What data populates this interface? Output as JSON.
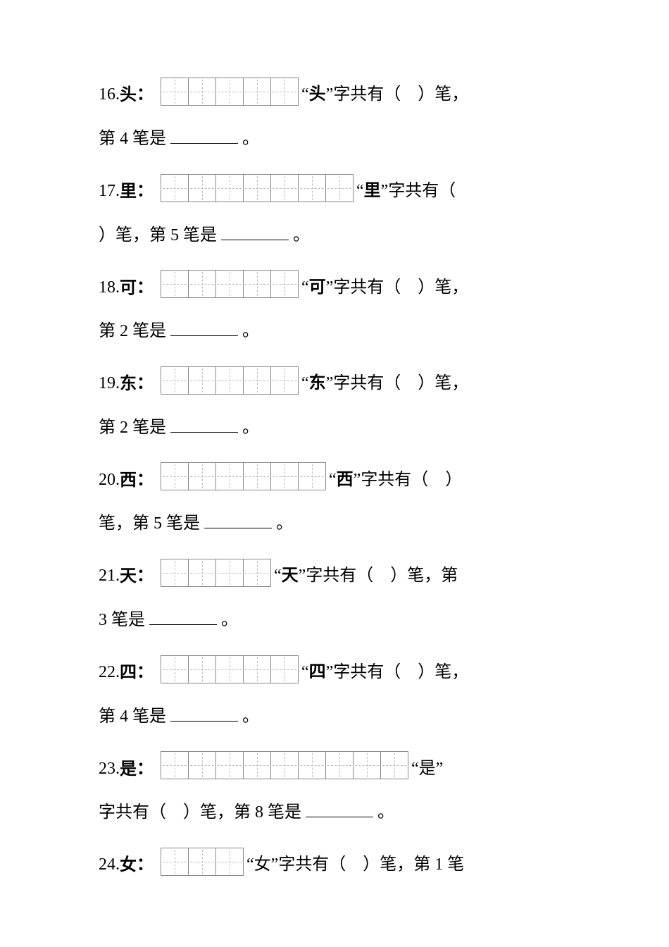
{
  "questions": [
    {
      "num": "16.",
      "char": "头",
      "boxes": 5,
      "q_char": "头",
      "q_char_bold": true,
      "stroke_ref": "第 4 笔是",
      "blank_width": 96
    },
    {
      "num": "17.",
      "char": "里",
      "boxes": 7,
      "q_char": "里",
      "q_char_bold": true,
      "stroke_ref": "第 5 笔是",
      "blank_width": 96,
      "break_after_boxes": true
    },
    {
      "num": "18.",
      "char": "可",
      "boxes": 5,
      "q_char": "可",
      "q_char_bold": true,
      "stroke_ref": "第 2 笔是",
      "blank_width": 96
    },
    {
      "num": "19.",
      "char": "东",
      "boxes": 5,
      "q_char": "东",
      "q_char_bold": true,
      "stroke_ref": "第 2 笔是",
      "blank_width": 96
    },
    {
      "num": "20.",
      "char": "西",
      "boxes": 6,
      "q_char": "西",
      "q_char_bold": true,
      "stroke_ref": "第 5 笔是",
      "blank_width": 96,
      "break_mid": true
    },
    {
      "num": "21.",
      "char": "天",
      "boxes": 4,
      "q_char": "天",
      "q_char_bold": true,
      "stroke_ref": "3 笔是",
      "prefix_cont": "第",
      "blank_width": 96,
      "inline_first": true
    },
    {
      "num": "22.",
      "char": "四",
      "boxes": 5,
      "q_char": "四",
      "q_char_bold": true,
      "stroke_ref": "第 4 笔是",
      "blank_width": 96
    },
    {
      "num": "23.",
      "char": "是",
      "boxes": 9,
      "q_char": "是",
      "q_char_bold": false,
      "stroke_ref": "第 8 笔是",
      "blank_width": 96,
      "break_after_char": true
    },
    {
      "num": "24.",
      "char": "女",
      "boxes": 3,
      "q_char": "女",
      "q_char_bold": false,
      "stroke_ref": "第 1 笔",
      "blank_width": 0,
      "inline_all": true
    }
  ],
  "strings": {
    "char_has": "字共有（　）笔，",
    "char_has_nobreak": "字共有（　）",
    "bi_comma": "笔，",
    "period": "。",
    "lq": "“",
    "rq": "”"
  }
}
